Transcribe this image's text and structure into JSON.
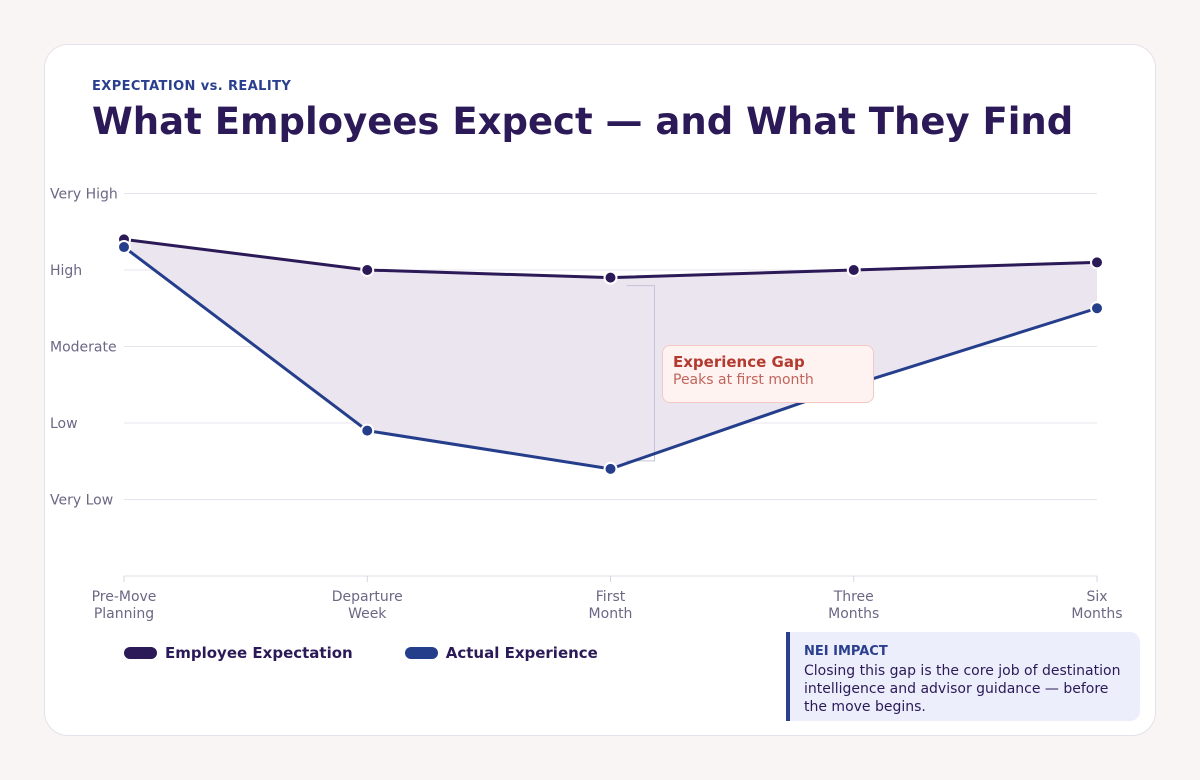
{
  "header": {
    "eyebrow": "EXPECTATION vs. REALITY",
    "title": "What Employees Expect — and What They Find"
  },
  "chart_data": {
    "type": "line",
    "categories": [
      "Pre-Move Planning",
      "Departure Week",
      "First Month",
      "Three Months",
      "Six Months"
    ],
    "y_tick_labels": [
      "Very Low",
      "Low",
      "Moderate",
      "High",
      "Very High"
    ],
    "y_tick_values": [
      1,
      2,
      3,
      4,
      5
    ],
    "ylim": [
      0,
      5
    ],
    "grid": true,
    "series": [
      {
        "name": "Employee Expectation",
        "values": [
          4.4,
          4.0,
          3.9,
          4.0,
          4.1
        ],
        "color": "#2b1a57"
      },
      {
        "name": "Actual Experience",
        "values": [
          4.3,
          1.9,
          1.4,
          2.5,
          3.5
        ],
        "color": "#253e8c"
      }
    ],
    "gap_fill_color": "#ebe5f0",
    "annotation": {
      "title": "Experience Gap",
      "subtitle": "Peaks at first month",
      "at_category": "First Month"
    },
    "legend_position": "bottom-left"
  },
  "impact": {
    "title": "NEI IMPACT",
    "body": "Closing this gap is the core job of destination intelligence and advisor guidance — before the move begins."
  }
}
